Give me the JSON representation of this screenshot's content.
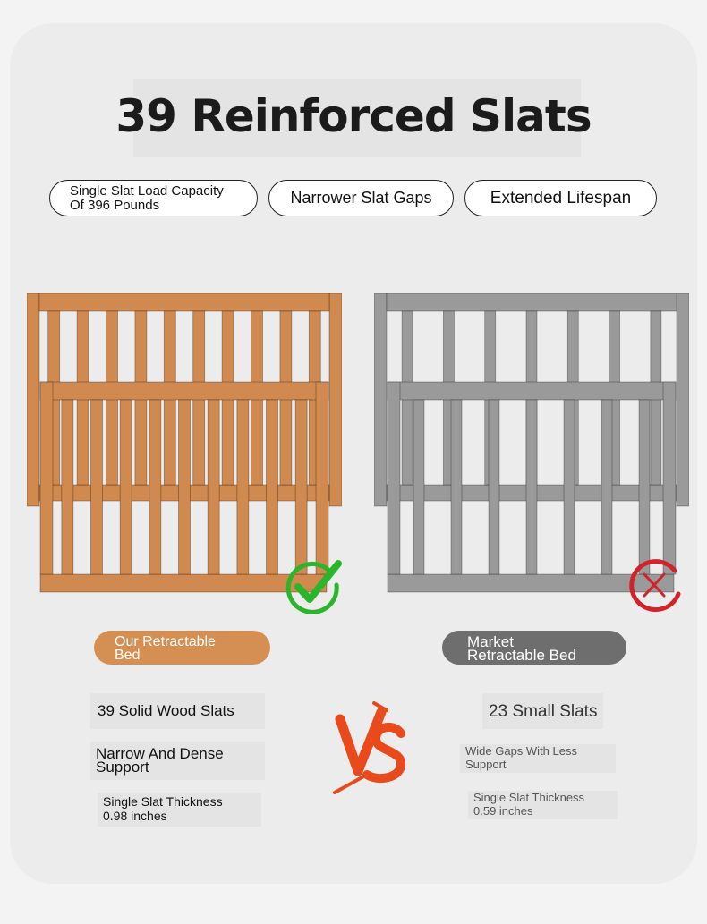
{
  "title": "39 Reinforced Slats",
  "badges": [
    {
      "line1": "Single Slat Load Capacity",
      "line2": "Of 396 Pounds"
    },
    {
      "text": "Narrower Slat Gaps"
    },
    {
      "text": "Extended Lifespan"
    }
  ],
  "ours": {
    "label_line1": "Our Retractable",
    "label_line2": "Bed",
    "color": "#d08a4f",
    "features": {
      "slats": "39 Solid Wood Slats",
      "support_line1": "Narrow And Dense",
      "support_line2": "Support",
      "thickness_line1": "Single Slat Thickness",
      "thickness_line2": "0.98 inches"
    },
    "icon": "green-check-icon"
  },
  "market": {
    "label_line1": "Market",
    "label_line2": "Retractable Bed",
    "color": "#9a9a9a",
    "features": {
      "slats": "23 Small Slats",
      "gaps_line1": "Wide Gaps With Less",
      "gaps_line2": "Support",
      "thickness_line1": "Single Slat Thickness",
      "thickness_line2": "0.59 inches"
    },
    "icon": "red-x-icon"
  },
  "vs_text": "VS",
  "vs_color": "#e84a1c"
}
